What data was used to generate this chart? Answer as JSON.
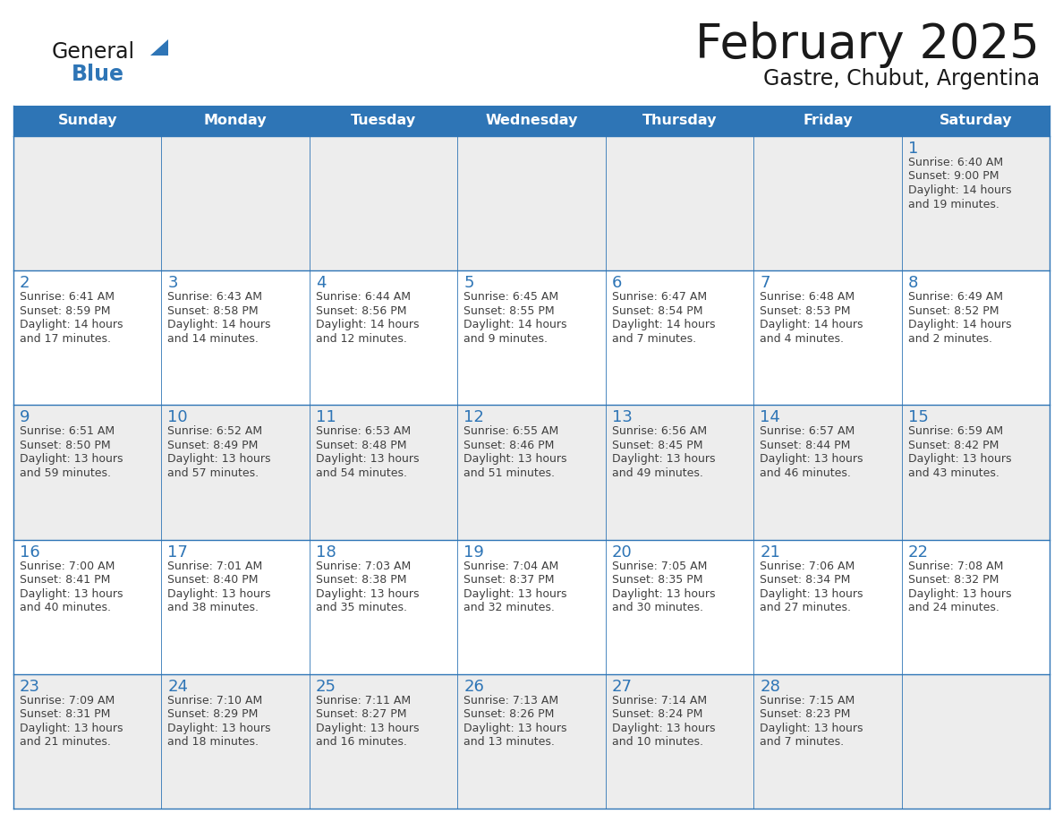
{
  "title": "February 2025",
  "subtitle": "Gastre, Chubut, Argentina",
  "days_of_week": [
    "Sunday",
    "Monday",
    "Tuesday",
    "Wednesday",
    "Thursday",
    "Friday",
    "Saturday"
  ],
  "header_bg": "#2E75B6",
  "header_text": "#FFFFFF",
  "row_bg_gray": "#EDEDED",
  "row_bg_white": "#FFFFFF",
  "cell_border": "#2E75B6",
  "day_num_color": "#2E75B6",
  "info_color": "#404040",
  "title_color": "#1a1a1a",
  "subtitle_color": "#1a1a1a",
  "logo_general_color": "#1a1a1a",
  "logo_blue_color": "#2E75B6",
  "calendar_data": [
    [
      null,
      null,
      null,
      null,
      null,
      null,
      {
        "day": 1,
        "sunrise": "6:40 AM",
        "sunset": "9:00 PM",
        "daylight": "14 hours",
        "daylight2": "and 19 minutes."
      }
    ],
    [
      {
        "day": 2,
        "sunrise": "6:41 AM",
        "sunset": "8:59 PM",
        "daylight": "14 hours",
        "daylight2": "and 17 minutes."
      },
      {
        "day": 3,
        "sunrise": "6:43 AM",
        "sunset": "8:58 PM",
        "daylight": "14 hours",
        "daylight2": "and 14 minutes."
      },
      {
        "day": 4,
        "sunrise": "6:44 AM",
        "sunset": "8:56 PM",
        "daylight": "14 hours",
        "daylight2": "and 12 minutes."
      },
      {
        "day": 5,
        "sunrise": "6:45 AM",
        "sunset": "8:55 PM",
        "daylight": "14 hours",
        "daylight2": "and 9 minutes."
      },
      {
        "day": 6,
        "sunrise": "6:47 AM",
        "sunset": "8:54 PM",
        "daylight": "14 hours",
        "daylight2": "and 7 minutes."
      },
      {
        "day": 7,
        "sunrise": "6:48 AM",
        "sunset": "8:53 PM",
        "daylight": "14 hours",
        "daylight2": "and 4 minutes."
      },
      {
        "day": 8,
        "sunrise": "6:49 AM",
        "sunset": "8:52 PM",
        "daylight": "14 hours",
        "daylight2": "and 2 minutes."
      }
    ],
    [
      {
        "day": 9,
        "sunrise": "6:51 AM",
        "sunset": "8:50 PM",
        "daylight": "13 hours",
        "daylight2": "and 59 minutes."
      },
      {
        "day": 10,
        "sunrise": "6:52 AM",
        "sunset": "8:49 PM",
        "daylight": "13 hours",
        "daylight2": "and 57 minutes."
      },
      {
        "day": 11,
        "sunrise": "6:53 AM",
        "sunset": "8:48 PM",
        "daylight": "13 hours",
        "daylight2": "and 54 minutes."
      },
      {
        "day": 12,
        "sunrise": "6:55 AM",
        "sunset": "8:46 PM",
        "daylight": "13 hours",
        "daylight2": "and 51 minutes."
      },
      {
        "day": 13,
        "sunrise": "6:56 AM",
        "sunset": "8:45 PM",
        "daylight": "13 hours",
        "daylight2": "and 49 minutes."
      },
      {
        "day": 14,
        "sunrise": "6:57 AM",
        "sunset": "8:44 PM",
        "daylight": "13 hours",
        "daylight2": "and 46 minutes."
      },
      {
        "day": 15,
        "sunrise": "6:59 AM",
        "sunset": "8:42 PM",
        "daylight": "13 hours",
        "daylight2": "and 43 minutes."
      }
    ],
    [
      {
        "day": 16,
        "sunrise": "7:00 AM",
        "sunset": "8:41 PM",
        "daylight": "13 hours",
        "daylight2": "and 40 minutes."
      },
      {
        "day": 17,
        "sunrise": "7:01 AM",
        "sunset": "8:40 PM",
        "daylight": "13 hours",
        "daylight2": "and 38 minutes."
      },
      {
        "day": 18,
        "sunrise": "7:03 AM",
        "sunset": "8:38 PM",
        "daylight": "13 hours",
        "daylight2": "and 35 minutes."
      },
      {
        "day": 19,
        "sunrise": "7:04 AM",
        "sunset": "8:37 PM",
        "daylight": "13 hours",
        "daylight2": "and 32 minutes."
      },
      {
        "day": 20,
        "sunrise": "7:05 AM",
        "sunset": "8:35 PM",
        "daylight": "13 hours",
        "daylight2": "and 30 minutes."
      },
      {
        "day": 21,
        "sunrise": "7:06 AM",
        "sunset": "8:34 PM",
        "daylight": "13 hours",
        "daylight2": "and 27 minutes."
      },
      {
        "day": 22,
        "sunrise": "7:08 AM",
        "sunset": "8:32 PM",
        "daylight": "13 hours",
        "daylight2": "and 24 minutes."
      }
    ],
    [
      {
        "day": 23,
        "sunrise": "7:09 AM",
        "sunset": "8:31 PM",
        "daylight": "13 hours",
        "daylight2": "and 21 minutes."
      },
      {
        "day": 24,
        "sunrise": "7:10 AM",
        "sunset": "8:29 PM",
        "daylight": "13 hours",
        "daylight2": "and 18 minutes."
      },
      {
        "day": 25,
        "sunrise": "7:11 AM",
        "sunset": "8:27 PM",
        "daylight": "13 hours",
        "daylight2": "and 16 minutes."
      },
      {
        "day": 26,
        "sunrise": "7:13 AM",
        "sunset": "8:26 PM",
        "daylight": "13 hours",
        "daylight2": "and 13 minutes."
      },
      {
        "day": 27,
        "sunrise": "7:14 AM",
        "sunset": "8:24 PM",
        "daylight": "13 hours",
        "daylight2": "and 10 minutes."
      },
      {
        "day": 28,
        "sunrise": "7:15 AM",
        "sunset": "8:23 PM",
        "daylight": "13 hours",
        "daylight2": "and 7 minutes."
      },
      null
    ]
  ]
}
